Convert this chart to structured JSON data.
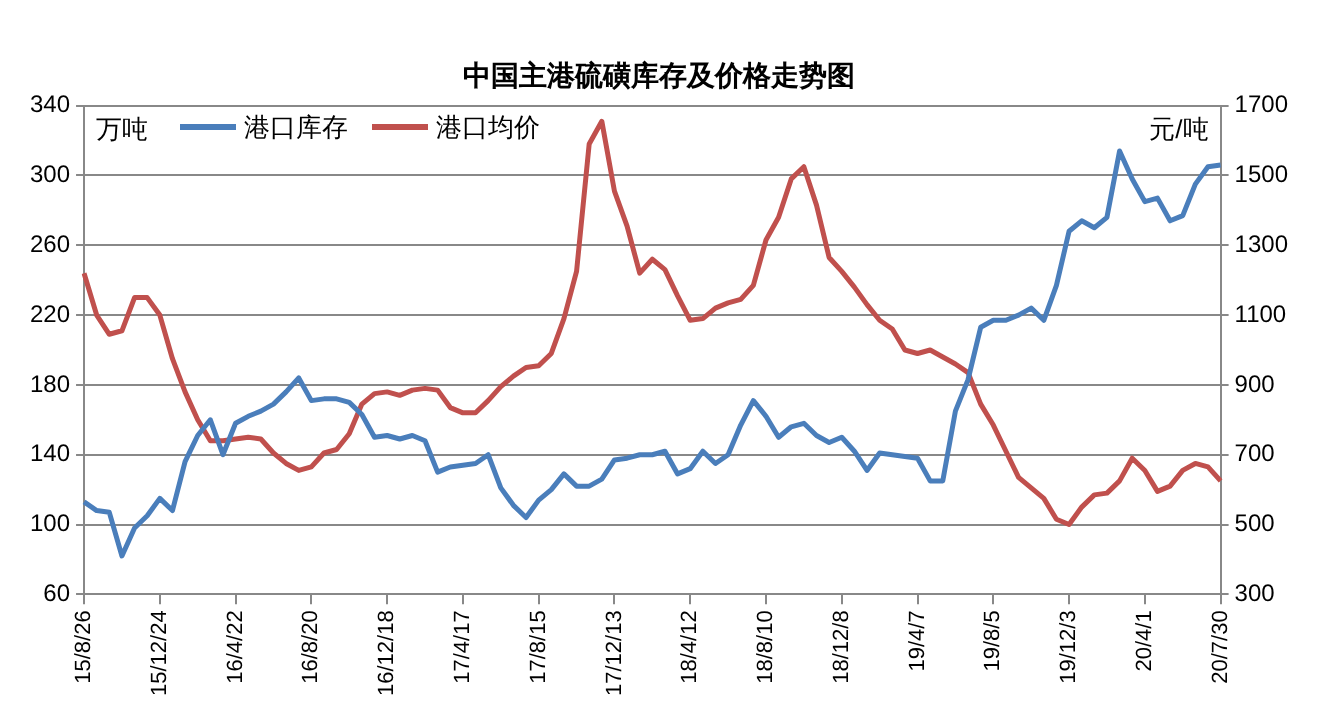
{
  "chart_data": {
    "type": "line",
    "title": "中国主港硫磺库存及价格走势图",
    "ylabel": "万吨",
    "y2label": "元/吨",
    "categories": [
      "15/8/26",
      null,
      null,
      null,
      null,
      null,
      "15/12/24",
      null,
      null,
      null,
      null,
      null,
      "16/4/22",
      null,
      null,
      null,
      null,
      null,
      "16/8/20",
      null,
      null,
      null,
      null,
      null,
      "16/12/18",
      null,
      null,
      null,
      null,
      null,
      "17/4/17",
      null,
      null,
      null,
      null,
      null,
      "17/8/15",
      null,
      null,
      null,
      null,
      null,
      "17/12/13",
      null,
      null,
      null,
      null,
      null,
      "18/4/12",
      null,
      null,
      null,
      null,
      null,
      "18/8/10",
      null,
      null,
      null,
      null,
      null,
      "18/12/8",
      null,
      null,
      null,
      null,
      null,
      "19/4/7",
      null,
      null,
      null,
      null,
      null,
      "19/8/5",
      null,
      null,
      null,
      null,
      null,
      "19/12/3",
      null,
      null,
      null,
      null,
      null,
      "20/4/1",
      null,
      null,
      null,
      null,
      null,
      "20/7/30"
    ],
    "series": [
      {
        "name": "港口库存",
        "color": "#4a7ebb",
        "values": [
          113,
          108,
          107,
          82,
          98,
          105,
          115,
          108,
          136,
          151,
          160,
          140,
          158,
          162,
          165,
          169,
          176,
          184,
          171,
          172,
          172,
          170,
          163,
          150,
          151,
          149,
          151,
          148,
          130,
          133,
          134,
          135,
          140,
          121,
          111,
          104,
          114,
          120,
          129,
          122,
          122,
          126,
          137,
          138,
          140,
          140,
          142,
          129,
          132,
          142,
          135,
          140,
          157,
          171,
          162,
          150,
          156,
          158,
          151,
          147,
          150,
          142,
          131,
          141,
          140,
          139,
          138,
          125,
          125,
          165,
          183,
          213,
          217,
          217,
          220,
          224,
          217,
          237,
          268,
          274,
          270,
          276,
          314,
          298,
          285,
          287,
          274,
          277,
          295,
          305,
          306
        ]
      },
      {
        "name": "港口均价",
        "color": "#c0504d",
        "axis": "y2",
        "values": [
          1220,
          1100,
          1045,
          1055,
          1150,
          1150,
          1100,
          975,
          880,
          800,
          740,
          740,
          745,
          750,
          745,
          705,
          675,
          655,
          665,
          705,
          715,
          760,
          845,
          875,
          880,
          870,
          885,
          890,
          885,
          835,
          820,
          820,
          855,
          895,
          925,
          950,
          955,
          990,
          1090,
          1225,
          1590,
          1655,
          1455,
          1355,
          1220,
          1260,
          1230,
          1155,
          1085,
          1090,
          1120,
          1135,
          1145,
          1185,
          1315,
          1380,
          1490,
          1525,
          1415,
          1265,
          1225,
          1180,
          1130,
          1085,
          1060,
          1000,
          990,
          1000,
          980,
          960,
          935,
          845,
          785,
          710,
          635,
          605,
          575,
          515,
          500,
          550,
          585,
          590,
          625,
          690,
          655,
          595,
          610,
          655,
          675,
          665,
          625
        ]
      }
    ],
    "ylim": [
      60,
      340
    ],
    "yticks": [
      60,
      100,
      140,
      180,
      220,
      260,
      300,
      340
    ],
    "y2lim": [
      300,
      1700
    ],
    "y2ticks": [
      300,
      500,
      700,
      900,
      1100,
      1300,
      1500,
      1700
    ],
    "grid": "y",
    "legend": "top left",
    "marker": "none",
    "line_style": "solid"
  }
}
